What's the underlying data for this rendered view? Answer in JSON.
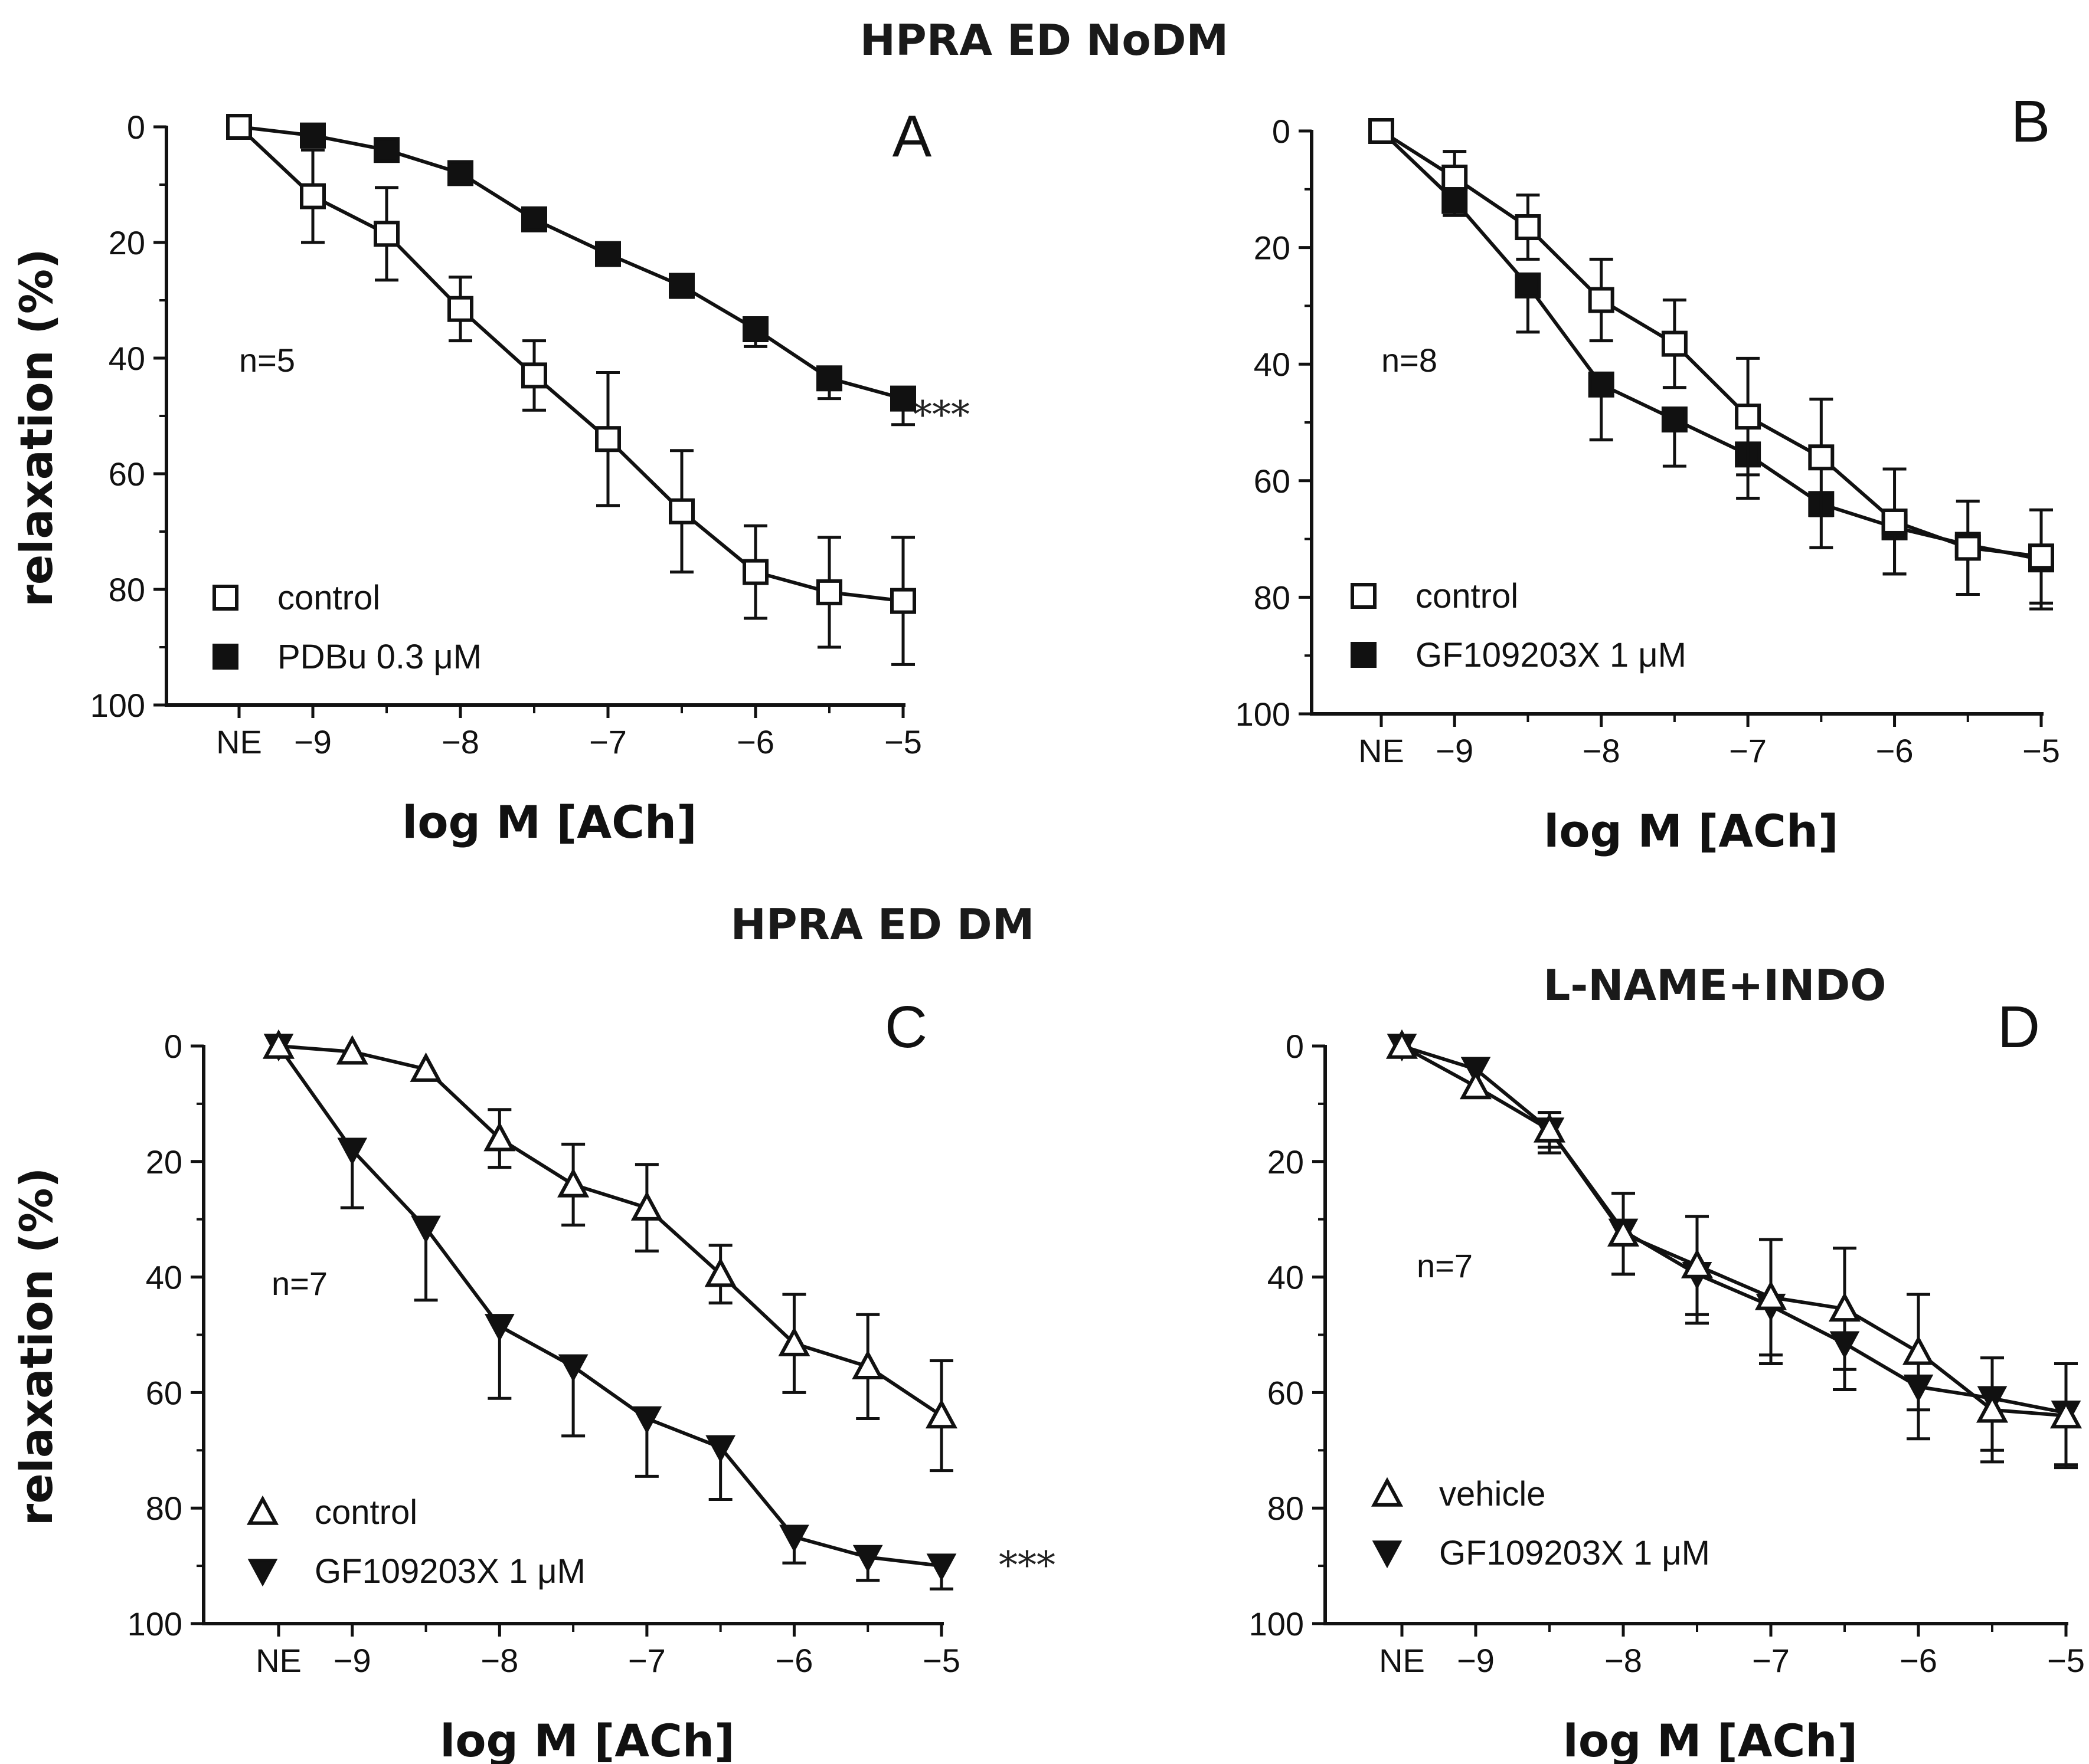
{
  "titles": {
    "top": "HPRA ED NoDM",
    "middle": "HPRA ED DM",
    "panel_d_condition": "L-NAME+INDO"
  },
  "colors": {
    "ink": "#111111",
    "open_fill": "#ffffff",
    "filled": "#111111"
  },
  "chart_data": [
    {
      "panel": "A",
      "type": "line",
      "xlabel": "log M [ACh]",
      "ylabel": "relaxation (%)",
      "categories": [
        "NE",
        "-9",
        "-8.5",
        "-8",
        "-7.5",
        "-7",
        "-6.5",
        "-6",
        "-5.5",
        "-5"
      ],
      "x_ticks": [
        "NE",
        "−9",
        "−8",
        "−7",
        "−6",
        "−5"
      ],
      "y_ticks": [
        "0",
        "20",
        "40",
        "60",
        "80",
        "100"
      ],
      "ylim": [
        0,
        100
      ],
      "y_inverted": true,
      "n": "n=5",
      "significance": "***",
      "series": [
        {
          "name": "control",
          "marker": "square-open",
          "values": [
            0,
            12,
            18.5,
            31.5,
            43,
            54,
            66.5,
            77,
            80.5,
            82
          ],
          "errors": [
            0,
            8,
            8,
            5.5,
            6,
            11.5,
            10.5,
            8,
            9.5,
            11
          ]
        },
        {
          "name": "PDBu 0.3 μM",
          "marker": "square-filled",
          "values": [
            0,
            1.5,
            4,
            8,
            16,
            22,
            27.5,
            35,
            43.5,
            47
          ],
          "errors": [
            0,
            0,
            0,
            0,
            0,
            0,
            2,
            3,
            3.5,
            4.5
          ]
        }
      ]
    },
    {
      "panel": "B",
      "type": "line",
      "xlabel": "log M [ACh]",
      "ylabel": "",
      "categories": [
        "NE",
        "-9",
        "-8.5",
        "-8",
        "-7.5",
        "-7",
        "-6.5",
        "-6",
        "-5.5",
        "-5"
      ],
      "x_ticks": [
        "NE",
        "−9",
        "−8",
        "−7",
        "−6",
        "−5"
      ],
      "y_ticks": [
        "0",
        "20",
        "40",
        "60",
        "80",
        "100"
      ],
      "ylim": [
        0,
        100
      ],
      "y_inverted": true,
      "n": "n=8",
      "significance": "",
      "series": [
        {
          "name": "control",
          "marker": "square-open",
          "values": [
            0,
            8,
            16.5,
            29,
            36.5,
            49,
            56,
            67,
            71.5,
            73
          ],
          "errors": [
            0,
            4.5,
            5.5,
            7,
            7.5,
            10,
            10,
            9,
            8,
            8
          ]
        },
        {
          "name": "GF109203X 1 μM",
          "marker": "square-filled",
          "values": [
            0,
            12,
            26.5,
            43.5,
            49.5,
            55.5,
            64,
            68,
            71,
            73.5
          ],
          "errors": [
            0,
            2.5,
            8,
            9.5,
            8,
            7.5,
            7.5,
            8,
            8.5,
            8.5
          ]
        }
      ]
    },
    {
      "panel": "C",
      "type": "line",
      "xlabel": "log M [ACh]",
      "ylabel": "relaxation (%)",
      "categories": [
        "NE",
        "-9",
        "-8.5",
        "-8",
        "-7.5",
        "-7",
        "-6.5",
        "-6",
        "-5.5",
        "-5"
      ],
      "x_ticks": [
        "NE",
        "−9",
        "−8",
        "−7",
        "−6",
        "−5"
      ],
      "y_ticks": [
        "0",
        "20",
        "40",
        "60",
        "80",
        "100"
      ],
      "ylim": [
        0,
        100
      ],
      "y_inverted": true,
      "n": "n=7",
      "significance": "***",
      "series": [
        {
          "name": "control",
          "marker": "triangle-up-open",
          "values": [
            0,
            1,
            4,
            16,
            24,
            28,
            39.5,
            51.5,
            55.5,
            64
          ],
          "errors": [
            0,
            0,
            0,
            5,
            7,
            7.5,
            5,
            8.5,
            9,
            9.5
          ]
        },
        {
          "name": "GF109203X 1 μM",
          "marker": "triangle-down-filled",
          "values": [
            0,
            18,
            31.5,
            48.5,
            55.5,
            64.5,
            69.5,
            85,
            88.5,
            90
          ],
          "errors": [
            0,
            10,
            12.5,
            12.5,
            12,
            10,
            9,
            4.5,
            4,
            4
          ]
        }
      ]
    },
    {
      "panel": "D",
      "type": "line",
      "xlabel": "log M [ACh]",
      "ylabel": "",
      "categories": [
        "NE",
        "-9",
        "-8.5",
        "-8",
        "-7.5",
        "-7",
        "-6.5",
        "-6",
        "-5.5",
        "-5"
      ],
      "x_ticks": [
        "NE",
        "−9",
        "−8",
        "−7",
        "−6",
        "−5"
      ],
      "y_ticks": [
        "0",
        "20",
        "40",
        "60",
        "80",
        "100"
      ],
      "ylim": [
        0,
        100
      ],
      "y_inverted": true,
      "n": "n=7",
      "significance": "",
      "series": [
        {
          "name": "vehicle",
          "marker": "triangle-up-open",
          "values": [
            0,
            7,
            14.5,
            32.5,
            38,
            43.5,
            45.5,
            53,
            63,
            64
          ],
          "errors": [
            0,
            0,
            3,
            7,
            8.5,
            10,
            10.5,
            10,
            9,
            9
          ]
        },
        {
          "name": "GF109203X 1 μM",
          "marker": "triangle-down-filled",
          "values": [
            0,
            4,
            14.5,
            32,
            39.5,
            45,
            51.5,
            59,
            61,
            63.5
          ],
          "errors": [
            0,
            0,
            4,
            7.5,
            8.5,
            10,
            8,
            9,
            9,
            9
          ]
        }
      ]
    }
  ]
}
